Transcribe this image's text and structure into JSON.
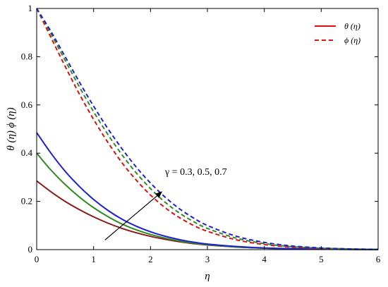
{
  "chart_data": {
    "type": "line",
    "title": "",
    "xlabel": "η",
    "ylabel": "θ (η)  ϕ (η)",
    "xlim": [
      0,
      6
    ],
    "ylim": [
      0,
      1
    ],
    "xticks": [
      "0",
      "1",
      "2",
      "3",
      "4",
      "5",
      "6"
    ],
    "yticks": [
      "0",
      "0.2",
      "0.4",
      "0.6",
      "0.8",
      "1"
    ],
    "grid": false,
    "legend_position": "top-right",
    "legend": [
      {
        "label": "θ (η)",
        "style": "solid",
        "color": "#e01010"
      },
      {
        "label": "ϕ (η)",
        "style": "dashed",
        "color": "#e01010"
      }
    ],
    "annotation": {
      "text": "γ = 0.3, 0.5, 0.7",
      "arrow_from": [
        1.2,
        0.04
      ],
      "arrow_to": [
        2.2,
        0.24
      ]
    },
    "x": [
      0,
      0.25,
      0.5,
      0.75,
      1,
      1.25,
      1.5,
      1.75,
      2,
      2.25,
      2.5,
      2.75,
      3,
      3.5,
      4,
      4.5,
      5,
      5.5,
      6
    ],
    "series": [
      {
        "style": "solid",
        "color": "#8b1a1a",
        "values": [
          0.285,
          0.24,
          0.2,
          0.166,
          0.136,
          0.11,
          0.088,
          0.07,
          0.055,
          0.043,
          0.033,
          0.025,
          0.019,
          0.011,
          0.006,
          0.003,
          0.002,
          0.001,
          0.0
        ]
      },
      {
        "style": "solid",
        "color": "#2e8b22",
        "values": [
          0.4,
          0.33,
          0.27,
          0.218,
          0.174,
          0.137,
          0.106,
          0.082,
          0.063,
          0.048,
          0.036,
          0.027,
          0.02,
          0.011,
          0.006,
          0.003,
          0.002,
          0.001,
          0.0
        ]
      },
      {
        "style": "solid",
        "color": "#1f1fd6",
        "values": [
          0.485,
          0.4,
          0.325,
          0.262,
          0.208,
          0.163,
          0.126,
          0.097,
          0.074,
          0.056,
          0.042,
          0.031,
          0.023,
          0.013,
          0.007,
          0.004,
          0.002,
          0.001,
          0.0
        ]
      },
      {
        "style": "dashed",
        "color": "#e01010",
        "values": [
          1.0,
          0.88,
          0.76,
          0.645,
          0.54,
          0.445,
          0.36,
          0.288,
          0.226,
          0.175,
          0.134,
          0.101,
          0.076,
          0.041,
          0.021,
          0.01,
          0.005,
          0.002,
          0.001
        ]
      },
      {
        "style": "dashed",
        "color": "#2e8b22",
        "values": [
          1.0,
          0.895,
          0.785,
          0.675,
          0.572,
          0.478,
          0.393,
          0.318,
          0.253,
          0.198,
          0.153,
          0.117,
          0.088,
          0.048,
          0.025,
          0.012,
          0.006,
          0.003,
          0.001
        ]
      },
      {
        "style": "dashed",
        "color": "#1f1fd6",
        "values": [
          1.0,
          0.905,
          0.8,
          0.695,
          0.595,
          0.502,
          0.418,
          0.342,
          0.276,
          0.219,
          0.171,
          0.132,
          0.1,
          0.056,
          0.03,
          0.015,
          0.007,
          0.003,
          0.001
        ]
      }
    ]
  }
}
